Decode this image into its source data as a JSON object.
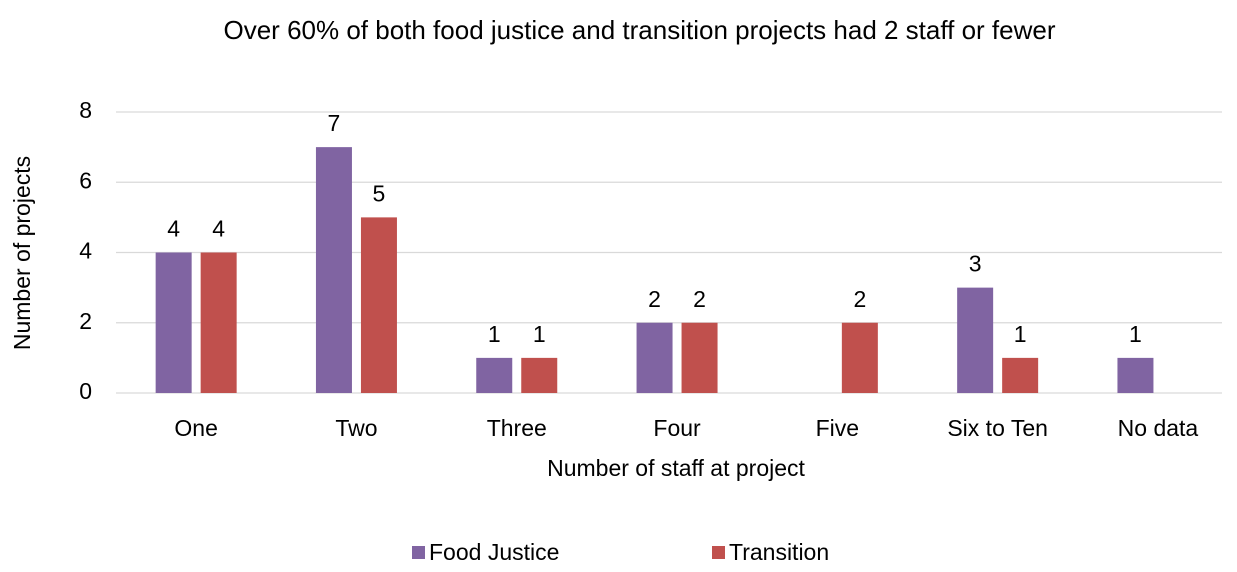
{
  "chart_data": {
    "type": "bar",
    "title": "Over 60% of both food justice and transition projects had 2 staff or fewer",
    "x_label": "Number of staff at project",
    "y_label": "Number of projects",
    "categories": [
      "One",
      "Two",
      "Three",
      "Four",
      "Five",
      "Six to Ten",
      "No data"
    ],
    "series": [
      {
        "name": "Food Justice",
        "color": "#8064a2",
        "values": [
          4,
          7,
          1,
          2,
          null,
          3,
          1
        ]
      },
      {
        "name": "Transition",
        "color": "#c0504d",
        "values": [
          4,
          5,
          1,
          2,
          2,
          1,
          null
        ]
      }
    ],
    "ylim": [
      0,
      8
    ],
    "yticks": [
      0,
      2,
      4,
      6,
      8
    ],
    "grid": true,
    "legend": "bottom"
  }
}
